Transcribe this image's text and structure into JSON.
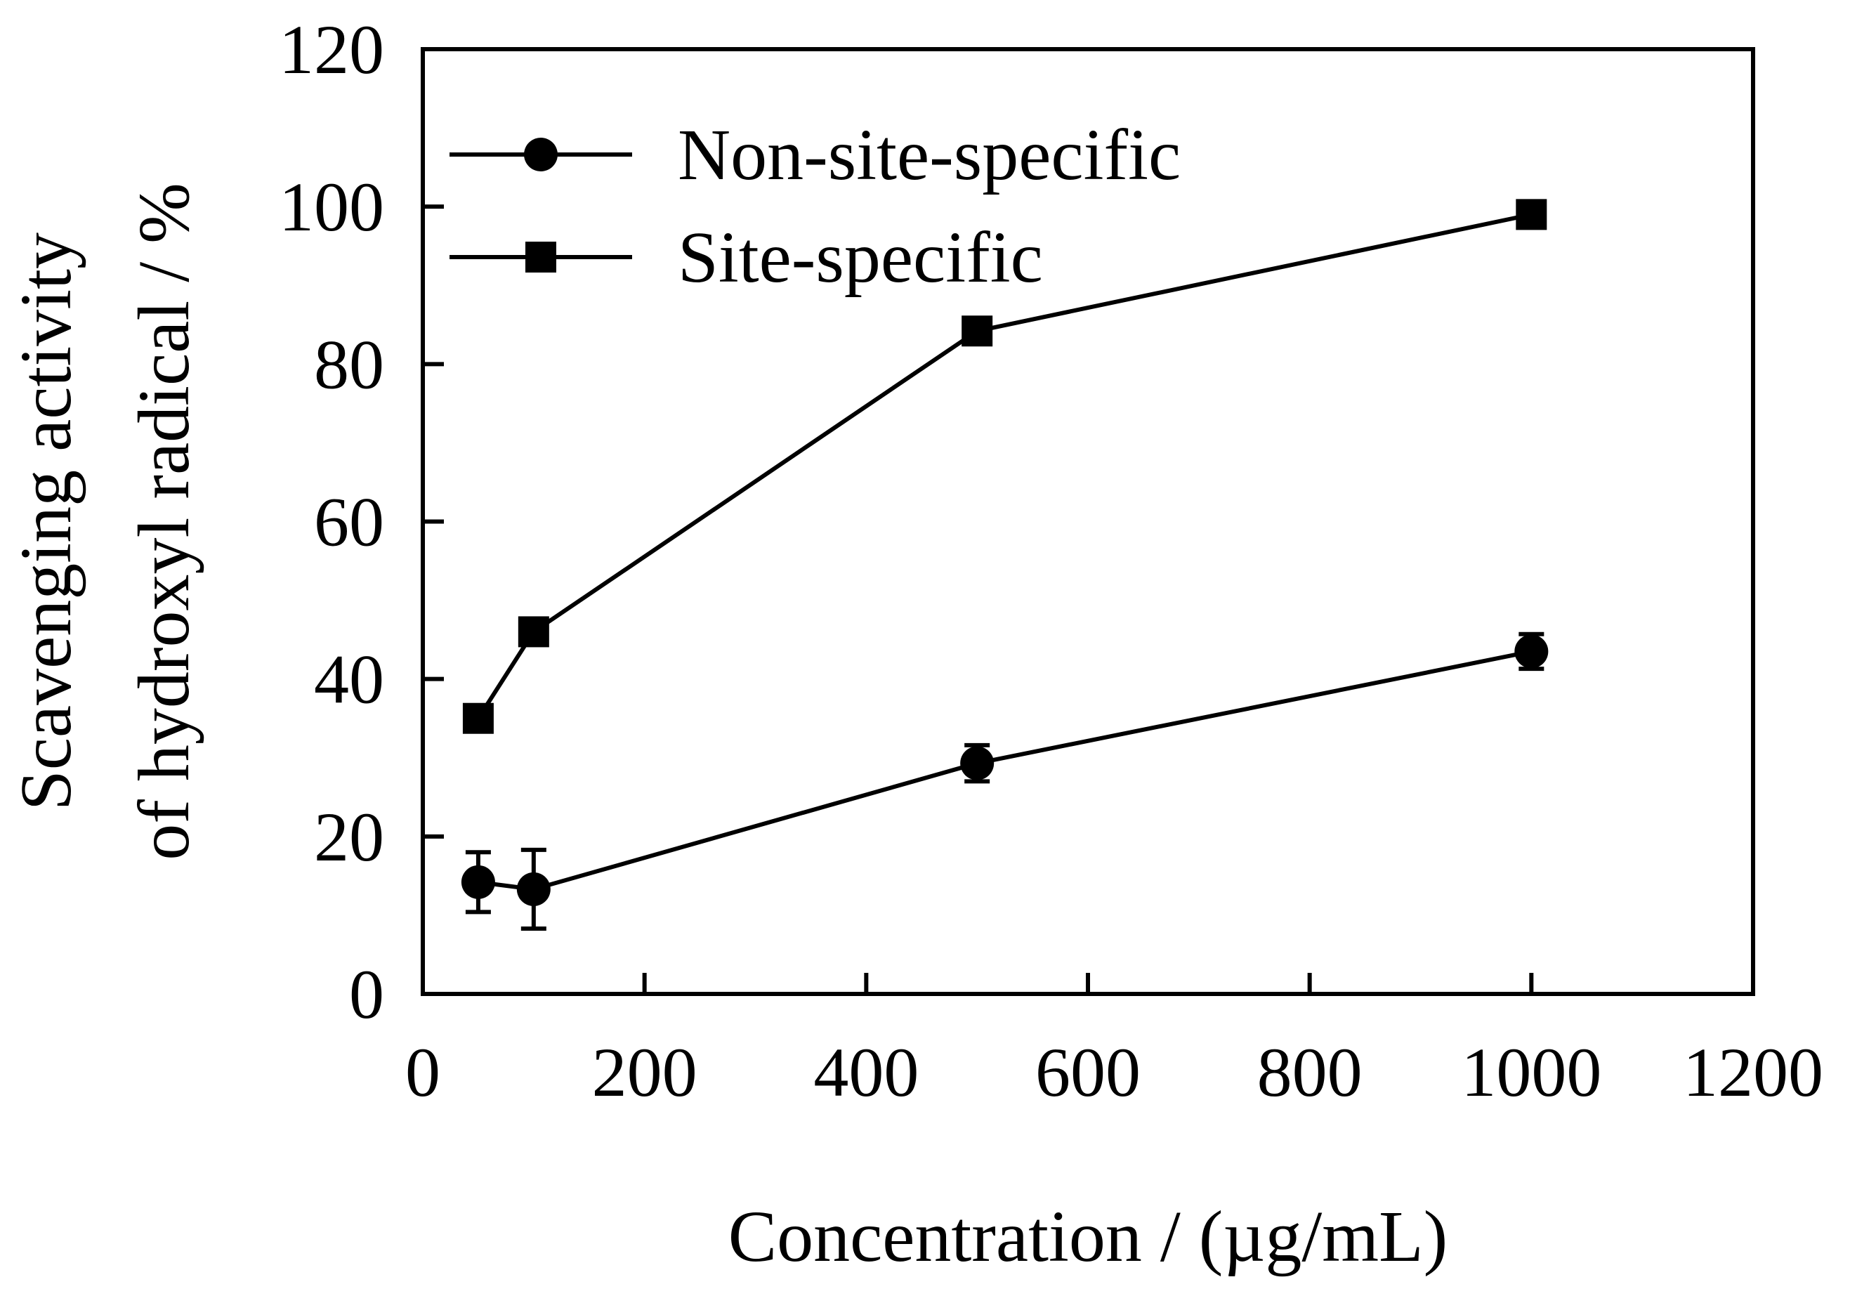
{
  "chart_data": {
    "type": "line",
    "title": "",
    "xlabel": "Concentration / (µg/mL)",
    "ylabel_lines": [
      "Scavenging activity",
      "of hydroxyl radical / %"
    ],
    "xlim": [
      0,
      1200
    ],
    "ylim": [
      0,
      120
    ],
    "x_ticks": [
      0,
      200,
      400,
      600,
      800,
      1000,
      1200
    ],
    "y_ticks": [
      0,
      20,
      40,
      60,
      80,
      100,
      120
    ],
    "x_tick_labels": [
      "0",
      "200",
      "400",
      "600",
      "800",
      "1000",
      "1200"
    ],
    "y_tick_labels": [
      "0",
      "20",
      "40",
      "60",
      "80",
      "100",
      "120"
    ],
    "grid": false,
    "legend_position": "top-left",
    "series": [
      {
        "name": "Non-site-specific",
        "marker": "circle",
        "x": [
          50,
          100,
          500,
          1000
        ],
        "y": [
          14.2,
          13.3,
          29.3,
          43.5
        ],
        "error": [
          3.8,
          5.0,
          2.3,
          2.2
        ]
      },
      {
        "name": "Site-specific",
        "marker": "square",
        "x": [
          50,
          100,
          500,
          1000
        ],
        "y": [
          35.0,
          46.0,
          84.2,
          99.0
        ]
      }
    ],
    "colors": {
      "line": "#000000",
      "marker": "#000000"
    }
  }
}
